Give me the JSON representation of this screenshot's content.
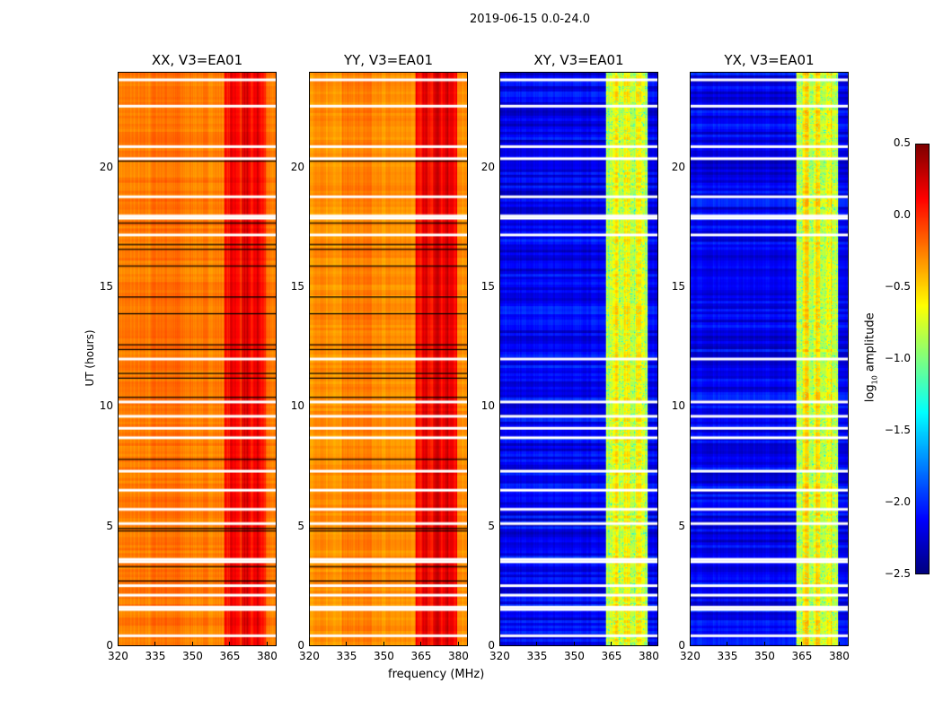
{
  "chart_data": {
    "type": "heatmap",
    "title": "2019-06-15 0.0-24.0",
    "xlabel": "frequency (MHz)",
    "ylabel": "UT (hours)",
    "xlim": [
      320,
      384
    ],
    "ylim": [
      0,
      24
    ],
    "xticks": [
      "320",
      "335",
      "350",
      "365",
      "380"
    ],
    "yticks": [
      "0",
      "5",
      "10",
      "15",
      "20"
    ],
    "colorbar": {
      "label_prefix": "log",
      "label_sub": "10",
      "label_suffix": " amplitude",
      "range": [
        -2.5,
        0.5
      ],
      "ticks": [
        "0.5",
        "0.0",
        "−0.5",
        "−1.0",
        "−1.5",
        "−2.0",
        "−2.5"
      ],
      "colormap": "jet"
    },
    "panels": [
      {
        "title": "XX, V3=EA01",
        "base_level": -0.25,
        "band_level": 0.05
      },
      {
        "title": "YY, V3=EA01",
        "base_level": -0.3,
        "band_level": 0.1
      },
      {
        "title": "XY, V3=EA01",
        "base_level": -2.15,
        "band_level": -0.8
      },
      {
        "title": "YX, V3=EA01",
        "base_level": -2.15,
        "band_level": -0.8
      }
    ],
    "band_mhz": [
      363,
      380
    ],
    "flagged_hours": [
      23.7,
      22.6,
      20.9,
      20.4,
      18.8,
      18.0,
      17.9,
      17.2,
      12.0,
      10.2,
      9.6,
      9.1,
      8.7,
      7.3,
      6.5,
      5.7,
      5.1,
      3.6,
      3.5,
      2.5,
      2.1,
      1.6,
      1.5,
      0.4
    ],
    "boundary_hours": [
      20.3,
      17.7,
      16.8,
      16.6,
      15.9,
      14.6,
      13.9,
      12.6,
      12.4,
      11.4,
      11.2,
      10.4,
      7.8,
      4.9,
      4.8,
      3.3,
      2.7
    ]
  }
}
